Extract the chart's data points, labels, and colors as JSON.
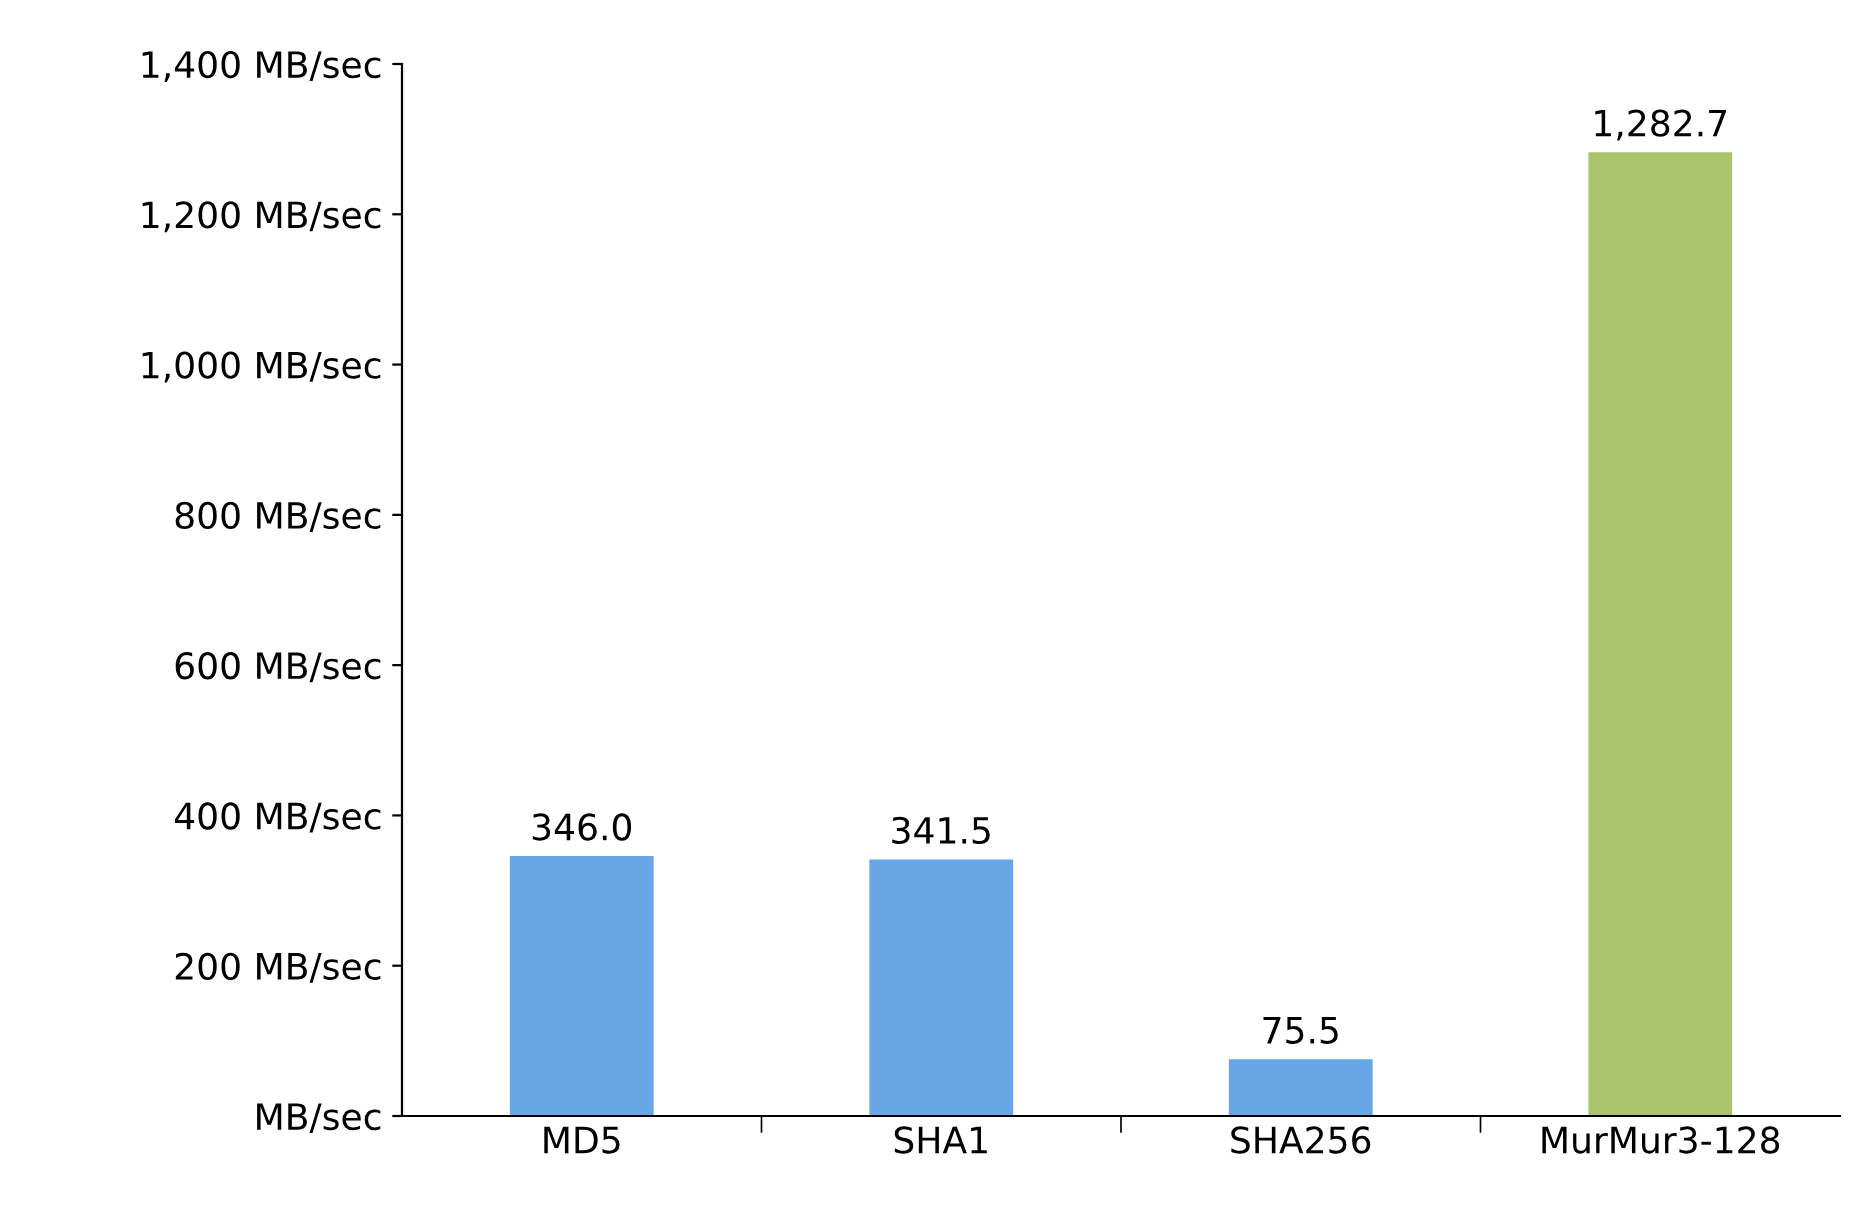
{
  "chart_data": {
    "type": "bar",
    "categories": [
      "MD5",
      "SHA1",
      "SHA256",
      "MurMur3-128"
    ],
    "values": [
      346.0,
      341.5,
      75.5,
      1282.7
    ],
    "colors": [
      "#6aa6e6",
      "#6aa6e6",
      "#6aa6e6",
      "#a9c46c"
    ],
    "value_labels": [
      "346.0",
      "341.5",
      "75.5",
      "1,282.7"
    ],
    "ylim": [
      0,
      1400
    ],
    "yticks": [
      {
        "value": 0,
        "label": "MB/sec"
      },
      {
        "value": 200,
        "label": "200 MB/sec"
      },
      {
        "value": 400,
        "label": "400 MB/sec"
      },
      {
        "value": 600,
        "label": "600 MB/sec"
      },
      {
        "value": 800,
        "label": "800 MB/sec"
      },
      {
        "value": 1000,
        "label": "1,000 MB/sec"
      },
      {
        "value": 1200,
        "label": "1,200 MB/sec"
      },
      {
        "value": 1400,
        "label": "1,400 MB/sec"
      }
    ],
    "grid": false,
    "legend": false
  }
}
